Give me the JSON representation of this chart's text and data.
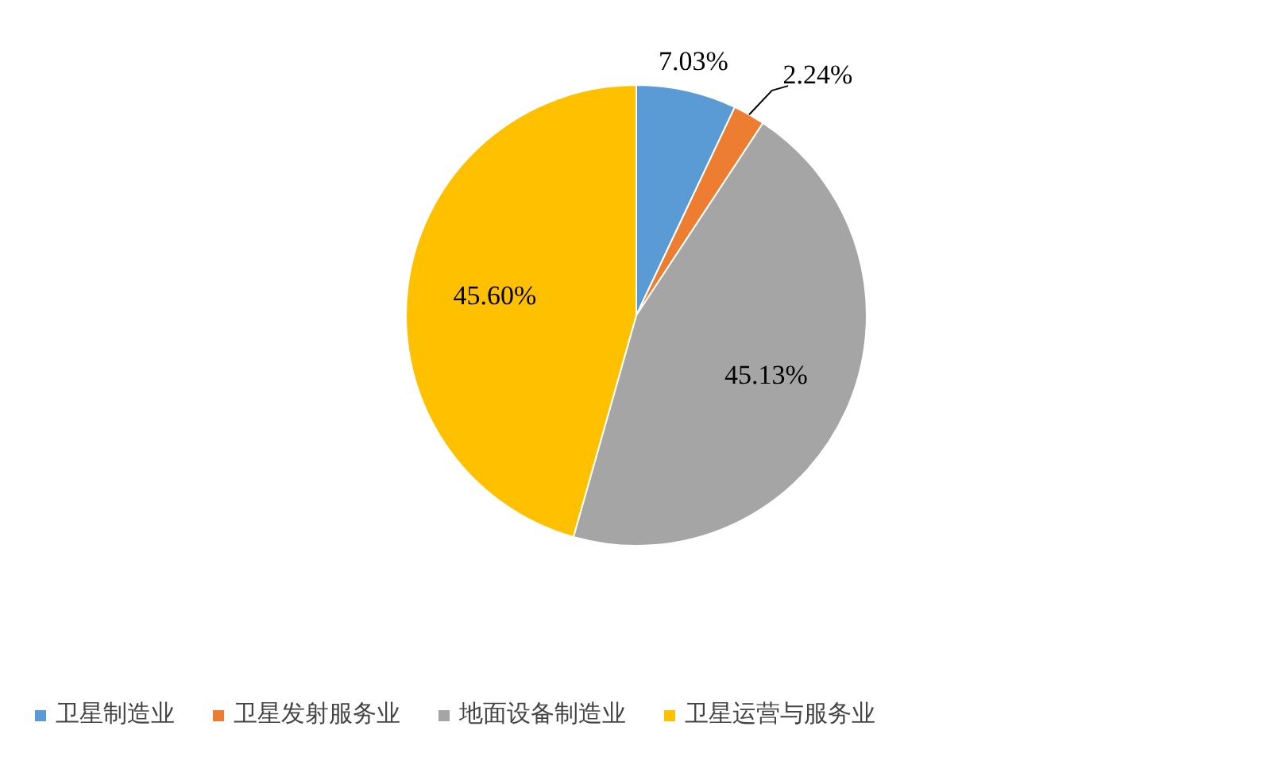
{
  "chart_data": {
    "type": "pie",
    "categories": [
      "卫星制造业",
      "卫星发射服务业",
      "地面设备制造业",
      "卫星运营与服务业"
    ],
    "values": [
      7.03,
      2.24,
      45.13,
      45.6
    ],
    "value_labels": [
      "7.03%",
      "2.24%",
      "45.13%",
      "45.60%"
    ],
    "colors": [
      "#5b9bd5",
      "#ed7d31",
      "#a5a5a5",
      "#ffc000"
    ],
    "legend": "bottom"
  }
}
